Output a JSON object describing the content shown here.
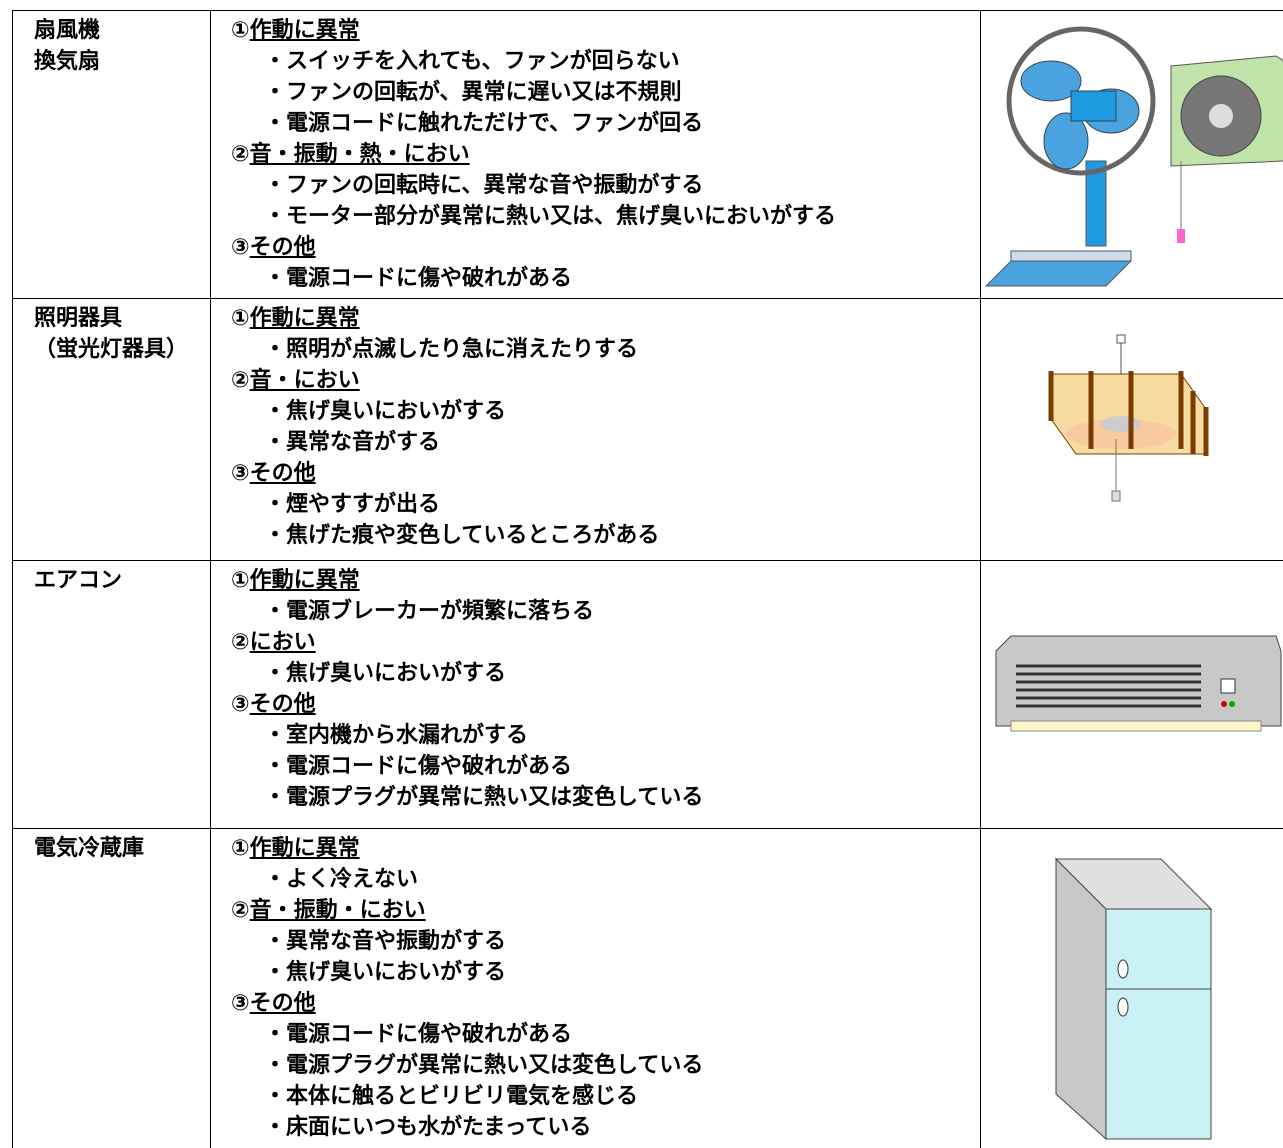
{
  "table": {
    "rows": [
      {
        "name": [
          "扇風機",
          "換気扇"
        ],
        "sections": [
          {
            "number": "①",
            "heading": "作動に異常",
            "items": [
              "・スイッチを入れても、ファンが回らない",
              "・ファンの回転が、異常に遅い又は不規則",
              "・電源コードに触れただけで、ファンが回る"
            ]
          },
          {
            "number": "②",
            "heading": "音・振動・熱・におい",
            "items": [
              "・ファンの回転時に、異常な音や振動がする",
              "・モーター部分が異常に熱い又は、焦げ臭いにおいがする"
            ]
          },
          {
            "number": "③",
            "heading": "その他",
            "items": [
              "・電源コードに傷や破れがある"
            ]
          }
        ]
      },
      {
        "name": [
          "照明器具",
          "（蛍光灯器具）"
        ],
        "sections": [
          {
            "number": "①",
            "heading": "作動に異常",
            "items": [
              "・照明が点滅したり急に消えたりする"
            ]
          },
          {
            "number": "②",
            "heading": "音・におい",
            "items": [
              "・焦げ臭いにおいがする",
              "・異常な音がする"
            ]
          },
          {
            "number": "③",
            "heading": "その他",
            "items": [
              "・煙やすすが出る",
              "・焦げた痕や変色しているところがある"
            ]
          }
        ]
      },
      {
        "name": [
          "エアコン"
        ],
        "sections": [
          {
            "number": "①",
            "heading": "作動に異常",
            "items": [
              "・電源ブレーカーが頻繁に落ちる"
            ]
          },
          {
            "number": "②",
            "heading": "におい",
            "items": [
              "・焦げ臭いにおいがする"
            ]
          },
          {
            "number": "③",
            "heading": "その他",
            "items": [
              "・室内機から水漏れがする",
              "・電源コードに傷や破れがある",
              "・電源プラグが異常に熱い又は変色している"
            ]
          }
        ]
      },
      {
        "name": [
          "電気冷蔵庫"
        ],
        "sections": [
          {
            "number": "①",
            "heading": "作動に異常",
            "items": [
              "・よく冷えない"
            ]
          },
          {
            "number": "②",
            "heading": "音・振動・におい",
            "items": [
              "・異常な音や振動がする",
              "・焦げ臭いにおいがする"
            ]
          },
          {
            "number": "③",
            "heading": "その他",
            "items": [
              "・電源コードに傷や破れがある",
              "・電源プラグが異常に熱い又は変色している",
              "・本体に触るとビリビリ電気を感じる",
              "・床面にいつも水がたまっている"
            ]
          }
        ]
      }
    ]
  }
}
